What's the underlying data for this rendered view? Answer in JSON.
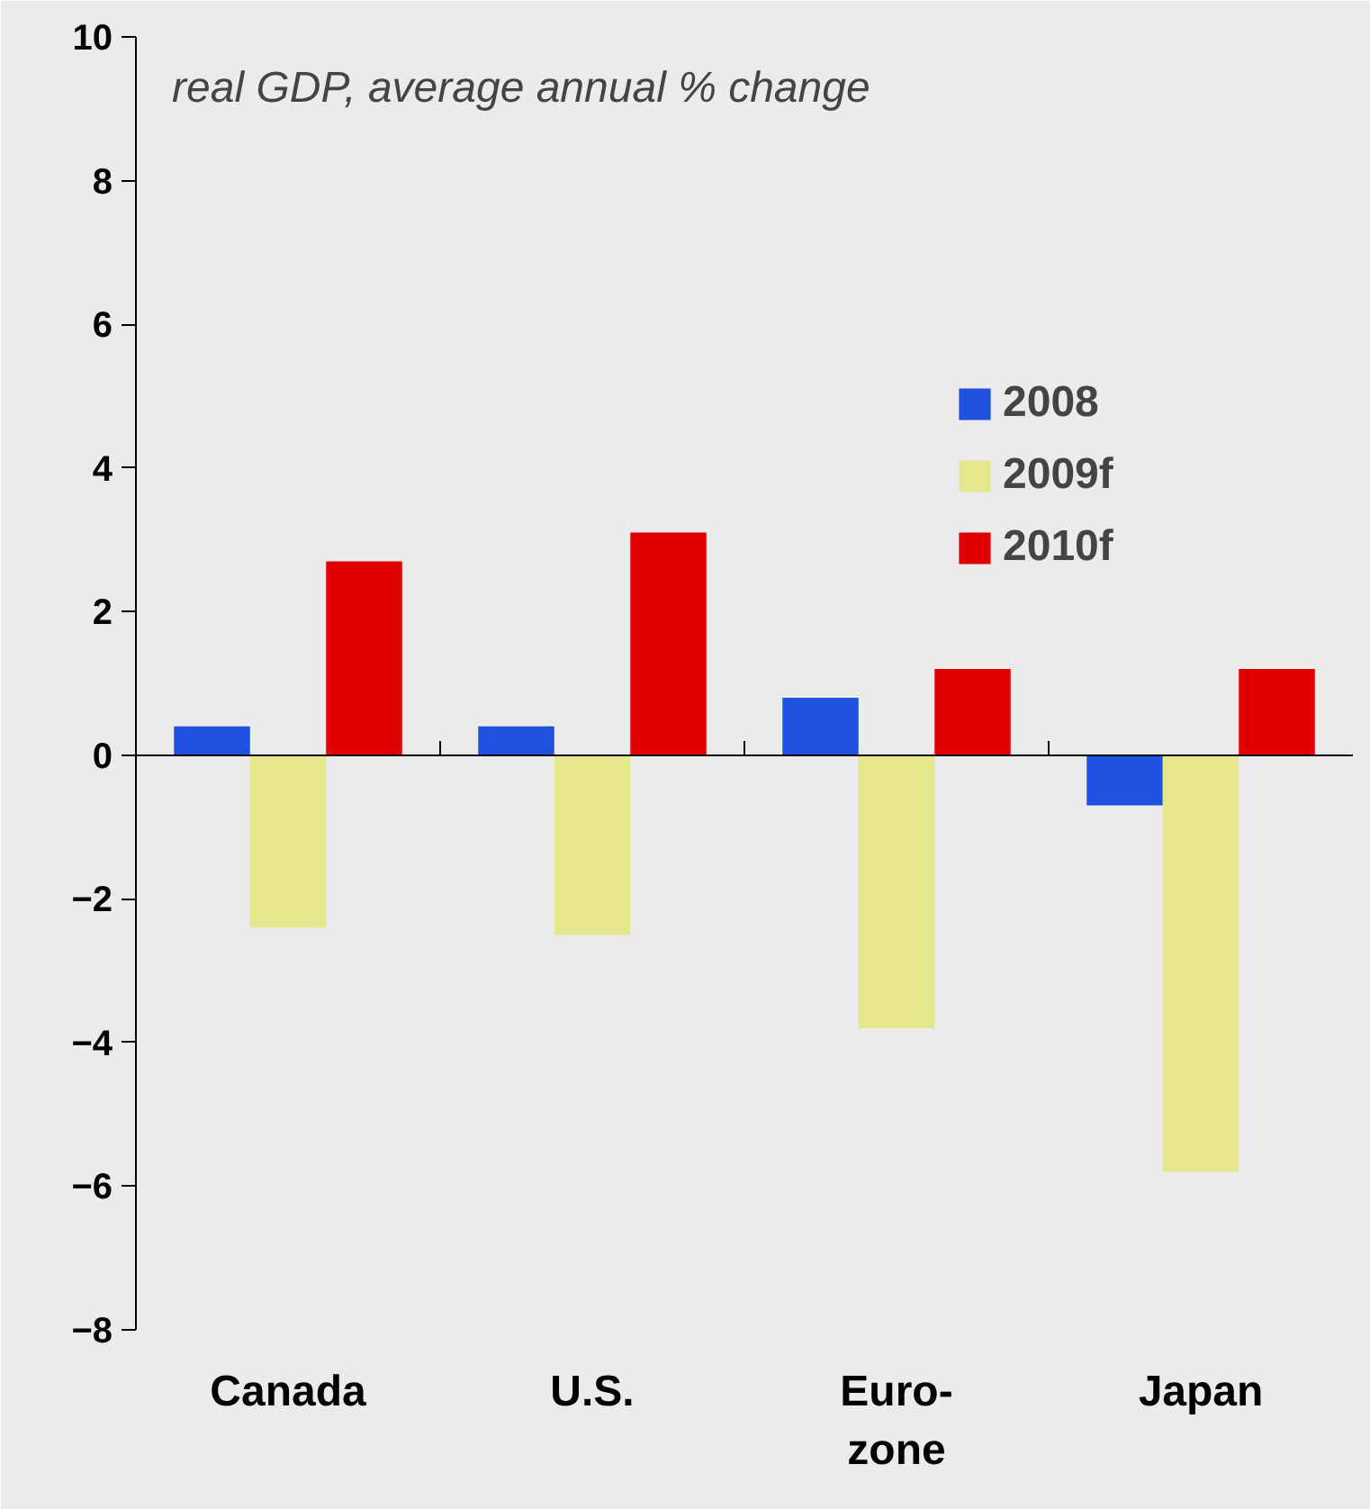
{
  "chart_data": {
    "type": "bar",
    "title": "real GDP, average annual % change",
    "categories": [
      "Canada",
      "U.S.",
      "Euro-\nzone",
      "Japan"
    ],
    "series": [
      {
        "name": "2008",
        "color": "#2050e0",
        "values": [
          0.4,
          0.4,
          0.8,
          -0.7
        ]
      },
      {
        "name": "2009f",
        "color": "#e6e68c",
        "values": [
          -2.4,
          -2.5,
          -3.8,
          -5.8
        ]
      },
      {
        "name": "2010f",
        "color": "#e00000",
        "values": [
          2.7,
          3.1,
          1.2,
          1.2
        ]
      }
    ],
    "ylim": [
      -8,
      10
    ],
    "yticks": [
      -8,
      -6,
      -4,
      -2,
      0,
      2,
      4,
      6,
      8,
      10
    ],
    "legend": "right"
  }
}
